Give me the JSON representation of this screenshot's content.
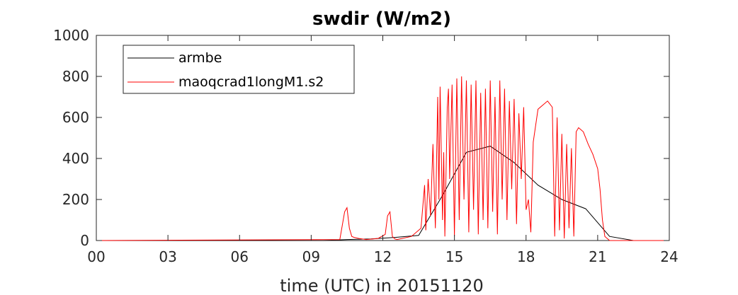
{
  "chart_data": {
    "type": "line",
    "title": "swdir  (W/m2)",
    "xlabel": "time (UTC) in 20151120",
    "ylabel": "",
    "xlim": [
      0,
      24
    ],
    "ylim": [
      0,
      1000
    ],
    "x_ticks": [
      0,
      3,
      6,
      9,
      12,
      15,
      18,
      21,
      24
    ],
    "x_tick_labels": [
      "00",
      "03",
      "06",
      "09",
      "12",
      "15",
      "18",
      "21",
      "24"
    ],
    "y_ticks": [
      0,
      200,
      400,
      600,
      800,
      1000
    ],
    "y_tick_labels": [
      "0",
      "200",
      "400",
      "600",
      "800",
      "1000"
    ],
    "grid": false,
    "legend_position": "top-left",
    "series": [
      {
        "name": "armbe",
        "color": "#000000",
        "x": [
          0,
          9.5,
          10.5,
          11.5,
          12.5,
          13.5,
          14.5,
          15.5,
          16.5,
          17.5,
          18.5,
          19.5,
          20.5,
          21.5,
          22.5,
          23.5
        ],
        "y": [
          0,
          0,
          5,
          8,
          15,
          25,
          220,
          430,
          460,
          380,
          270,
          200,
          155,
          20,
          0,
          0
        ]
      },
      {
        "name": "maoqcrad1longM1.s2",
        "color": "#ff0000",
        "x": [
          0,
          10.2,
          10.4,
          10.5,
          10.6,
          10.7,
          10.8,
          11.0,
          11.3,
          11.8,
          12.1,
          12.2,
          12.3,
          12.4,
          12.5,
          12.6,
          13.2,
          13.6,
          13.75,
          13.8,
          13.9,
          14.0,
          14.1,
          14.2,
          14.3,
          14.35,
          14.4,
          14.5,
          14.55,
          14.6,
          14.7,
          14.75,
          14.8,
          14.9,
          15.0,
          15.1,
          15.2,
          15.3,
          15.4,
          15.5,
          15.6,
          15.7,
          15.8,
          15.9,
          16.0,
          16.1,
          16.2,
          16.3,
          16.4,
          16.5,
          16.6,
          16.7,
          16.8,
          16.9,
          17.0,
          17.1,
          17.2,
          17.3,
          17.4,
          17.5,
          17.6,
          17.7,
          17.8,
          17.9,
          18.0,
          18.1,
          18.2,
          18.3,
          18.5,
          18.7,
          18.9,
          19.1,
          19.2,
          19.3,
          19.4,
          19.5,
          19.6,
          19.7,
          19.8,
          19.9,
          20.0,
          20.1,
          20.2,
          20.4,
          20.6,
          20.8,
          21.0,
          21.1,
          21.2,
          21.3,
          21.5,
          24
        ],
        "y": [
          0,
          5,
          140,
          160,
          60,
          20,
          15,
          10,
          5,
          10,
          30,
          120,
          140,
          20,
          8,
          5,
          20,
          60,
          270,
          50,
          300,
          120,
          470,
          60,
          700,
          200,
          750,
          100,
          430,
          20,
          650,
          740,
          300,
          760,
          20,
          790,
          100,
          800,
          200,
          780,
          40,
          760,
          150,
          780,
          30,
          720,
          100,
          740,
          60,
          780,
          140,
          700,
          30,
          780,
          200,
          740,
          100,
          680,
          250,
          690,
          80,
          620,
          300,
          650,
          150,
          200,
          40,
          480,
          640,
          660,
          680,
          650,
          20,
          600,
          50,
          520,
          10,
          470,
          60,
          450,
          20,
          530,
          550,
          530,
          470,
          420,
          350,
          250,
          100,
          20,
          0,
          0
        ]
      }
    ]
  }
}
